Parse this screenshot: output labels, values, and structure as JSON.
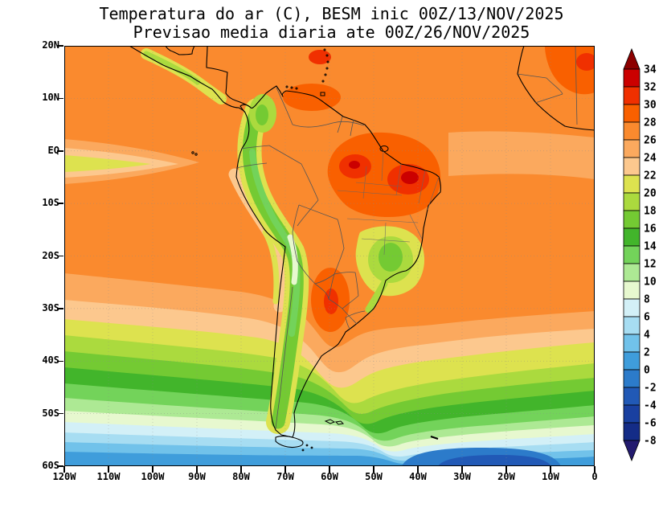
{
  "title": {
    "line1": "Temperatura do ar (C), BESM inic 00Z/13/NOV/2025",
    "line2": "Previsao media diaria ate 00Z/26/NOV/2025"
  },
  "axes": {
    "lat_labels": [
      "20N",
      "10N",
      "EQ",
      "10S",
      "20S",
      "30S",
      "40S",
      "50S",
      "60S"
    ],
    "lon_labels": [
      "120W",
      "110W",
      "100W",
      "90W",
      "80W",
      "70W",
      "60W",
      "50W",
      "40W",
      "30W",
      "20W",
      "10W",
      "0"
    ]
  },
  "colorbar": {
    "tick_labels": [
      "34",
      "32",
      "30",
      "28",
      "26",
      "24",
      "22",
      "20",
      "18",
      "16",
      "14",
      "12",
      "10",
      "8",
      "6",
      "4",
      "2",
      "0",
      "-2",
      "-4",
      "-6",
      "-8"
    ],
    "order": [
      "gt34",
      "32",
      "30",
      "28",
      "26",
      "24",
      "22",
      "20",
      "18",
      "16",
      "14",
      "12",
      "10",
      "8",
      "6",
      "4",
      "2",
      "0",
      "-2",
      "-4",
      "-6",
      "-8",
      "ltm8"
    ],
    "palette": {
      "gt34": "#8c0000",
      "32": "#cb0000",
      "30": "#f03000",
      "28": "#f96000",
      "26": "#fa8a2e",
      "24": "#fba95e",
      "22": "#fcc88e",
      "20": "#dde24f",
      "18": "#abda3e",
      "16": "#74ca33",
      "14": "#42b52b",
      "12": "#73d35a",
      "10": "#ade994",
      "8": "#e7f8cf",
      "6": "#d3f0f7",
      "4": "#a7ddf2",
      "2": "#71c2ea",
      "0": "#3f9ddb",
      "-2": "#2c7bca",
      "-4": "#2159b6",
      "-6": "#1940a0",
      "-8": "#142c87",
      "ltm8": "#231b6f"
    }
  },
  "chart_data": {
    "type": "heatmap",
    "description": "Filled-contour forecast map of mean daily air temperature (C) over South America",
    "contour_interval": 2,
    "range_shown": [
      -8,
      34
    ],
    "grid_estimate_degC": {
      "lats": [
        "20N",
        "10N",
        "EQ",
        "10S",
        "20S",
        "30S",
        "40S",
        "50S",
        "60S"
      ],
      "lons": [
        "120W",
        "110W",
        "100W",
        "90W",
        "80W",
        "70W",
        "60W",
        "50W",
        "40W",
        "30W",
        "20W",
        "10W",
        "0"
      ],
      "values": [
        [
          27,
          27,
          27,
          28,
          27,
          27,
          27,
          27,
          27,
          27,
          26,
          27,
          29
        ],
        [
          27,
          27,
          27,
          26,
          25,
          28,
          28,
          27,
          27,
          27,
          26,
          26,
          27
        ],
        [
          25,
          25,
          26,
          26,
          24,
          27,
          28,
          29,
          27,
          26,
          25,
          26,
          27
        ],
        [
          27,
          27,
          27,
          26,
          25,
          27,
          29,
          29,
          28,
          27,
          26,
          26,
          26
        ],
        [
          26,
          26,
          25,
          24,
          23,
          18,
          27,
          24,
          26,
          26,
          25,
          25,
          25
        ],
        [
          23,
          23,
          23,
          22,
          20,
          17,
          25,
          23,
          24,
          23,
          23,
          23,
          23
        ],
        [
          17,
          17,
          17,
          16,
          15,
          13,
          15,
          18,
          19,
          19,
          19,
          18,
          18
        ],
        [
          10,
          10,
          10,
          9,
          9,
          8,
          8,
          9,
          10,
          10,
          10,
          10,
          10
        ],
        [
          4,
          4,
          4,
          4,
          4,
          4,
          4,
          3,
          2,
          1,
          2,
          3,
          4
        ]
      ]
    }
  }
}
